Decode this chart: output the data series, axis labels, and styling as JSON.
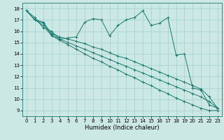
{
  "xlabel": "Humidex (Indice chaleur)",
  "background_color": "#cce8e4",
  "grid_color": "#aad4ce",
  "line_color": "#1a7a6e",
  "xlim": [
    -0.5,
    23.5
  ],
  "ylim": [
    8.5,
    18.5
  ],
  "xticks": [
    0,
    1,
    2,
    3,
    4,
    5,
    6,
    7,
    8,
    9,
    10,
    11,
    12,
    13,
    14,
    15,
    16,
    17,
    18,
    19,
    20,
    21,
    22,
    23
  ],
  "yticks": [
    9,
    10,
    11,
    12,
    13,
    14,
    15,
    16,
    17,
    18
  ],
  "series_jagged": [
    17.8,
    17.2,
    16.3,
    16.0,
    15.3,
    15.4,
    15.5,
    16.8,
    17.1,
    17.0,
    15.6,
    16.5,
    17.0,
    17.2,
    17.8,
    16.5,
    16.7,
    17.2,
    13.9,
    14.0,
    11.0,
    10.8,
    9.5,
    9.2
  ],
  "series_linear1": [
    17.8,
    17.0,
    16.8,
    15.8,
    15.5,
    15.3,
    15.1,
    14.9,
    14.6,
    14.4,
    14.1,
    13.8,
    13.6,
    13.3,
    13.0,
    12.7,
    12.4,
    12.1,
    11.8,
    11.5,
    11.2,
    10.9,
    10.2,
    9.2
  ],
  "series_linear2": [
    17.8,
    17.0,
    16.7,
    15.7,
    15.3,
    15.0,
    14.7,
    14.4,
    14.1,
    13.8,
    13.5,
    13.2,
    12.9,
    12.6,
    12.3,
    12.0,
    11.7,
    11.4,
    11.1,
    10.8,
    10.5,
    10.2,
    9.8,
    9.2
  ],
  "series_linear3": [
    17.8,
    17.0,
    16.5,
    15.6,
    15.2,
    14.8,
    14.4,
    14.0,
    13.6,
    13.3,
    12.9,
    12.6,
    12.2,
    11.9,
    11.5,
    11.2,
    10.8,
    10.5,
    10.1,
    9.8,
    9.5,
    9.2,
    9.0,
    9.0
  ]
}
